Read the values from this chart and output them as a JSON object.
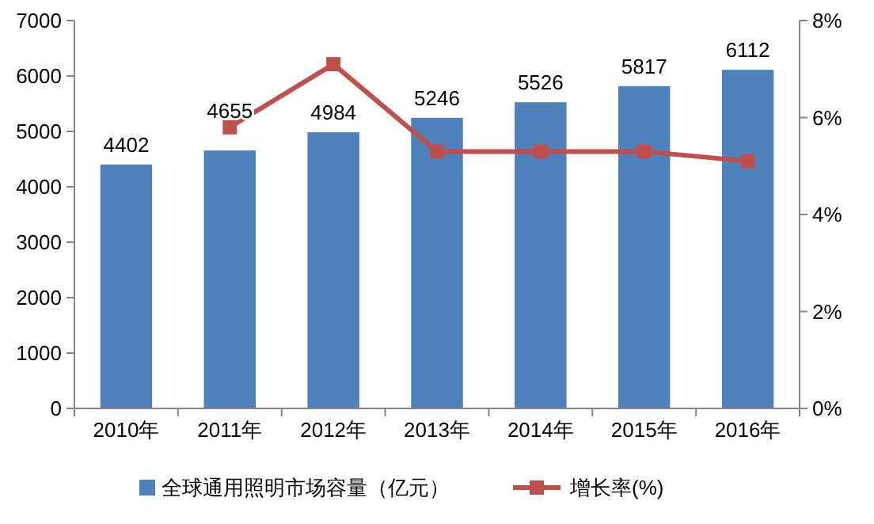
{
  "chart_data": {
    "type": "bar",
    "categories": [
      "2010年",
      "2011年",
      "2012年",
      "2013年",
      "2014年",
      "2015年",
      "2016年"
    ],
    "series": [
      {
        "name": "全球通用照明市场容量（亿元）",
        "color": "#4f81bd",
        "values": [
          4402,
          4655,
          4984,
          5246,
          5526,
          5817,
          6112
        ],
        "value_labels": [
          "4402",
          "4655",
          "4984",
          "5246",
          "5526",
          "5817",
          "6112"
        ]
      },
      {
        "name": "增长率(%)",
        "type": "line",
        "axis": "y2",
        "color": "#c0504d",
        "values": [
          null,
          5.8,
          7.1,
          5.3,
          5.3,
          5.3,
          5.1
        ],
        "marker": "square"
      }
    ],
    "ylim": [
      0,
      7000
    ],
    "yticks": [
      0,
      1000,
      2000,
      3000,
      4000,
      5000,
      6000,
      7000
    ],
    "y2lim": [
      0,
      8
    ],
    "y2ticks": [
      {
        "value": 0,
        "label": "0%"
      },
      {
        "value": 2,
        "label": "2%"
      },
      {
        "value": 4,
        "label": "4%"
      },
      {
        "value": 6,
        "label": "6%"
      },
      {
        "value": 8,
        "label": "8%"
      }
    ],
    "grid": false,
    "legend": "bottom"
  }
}
